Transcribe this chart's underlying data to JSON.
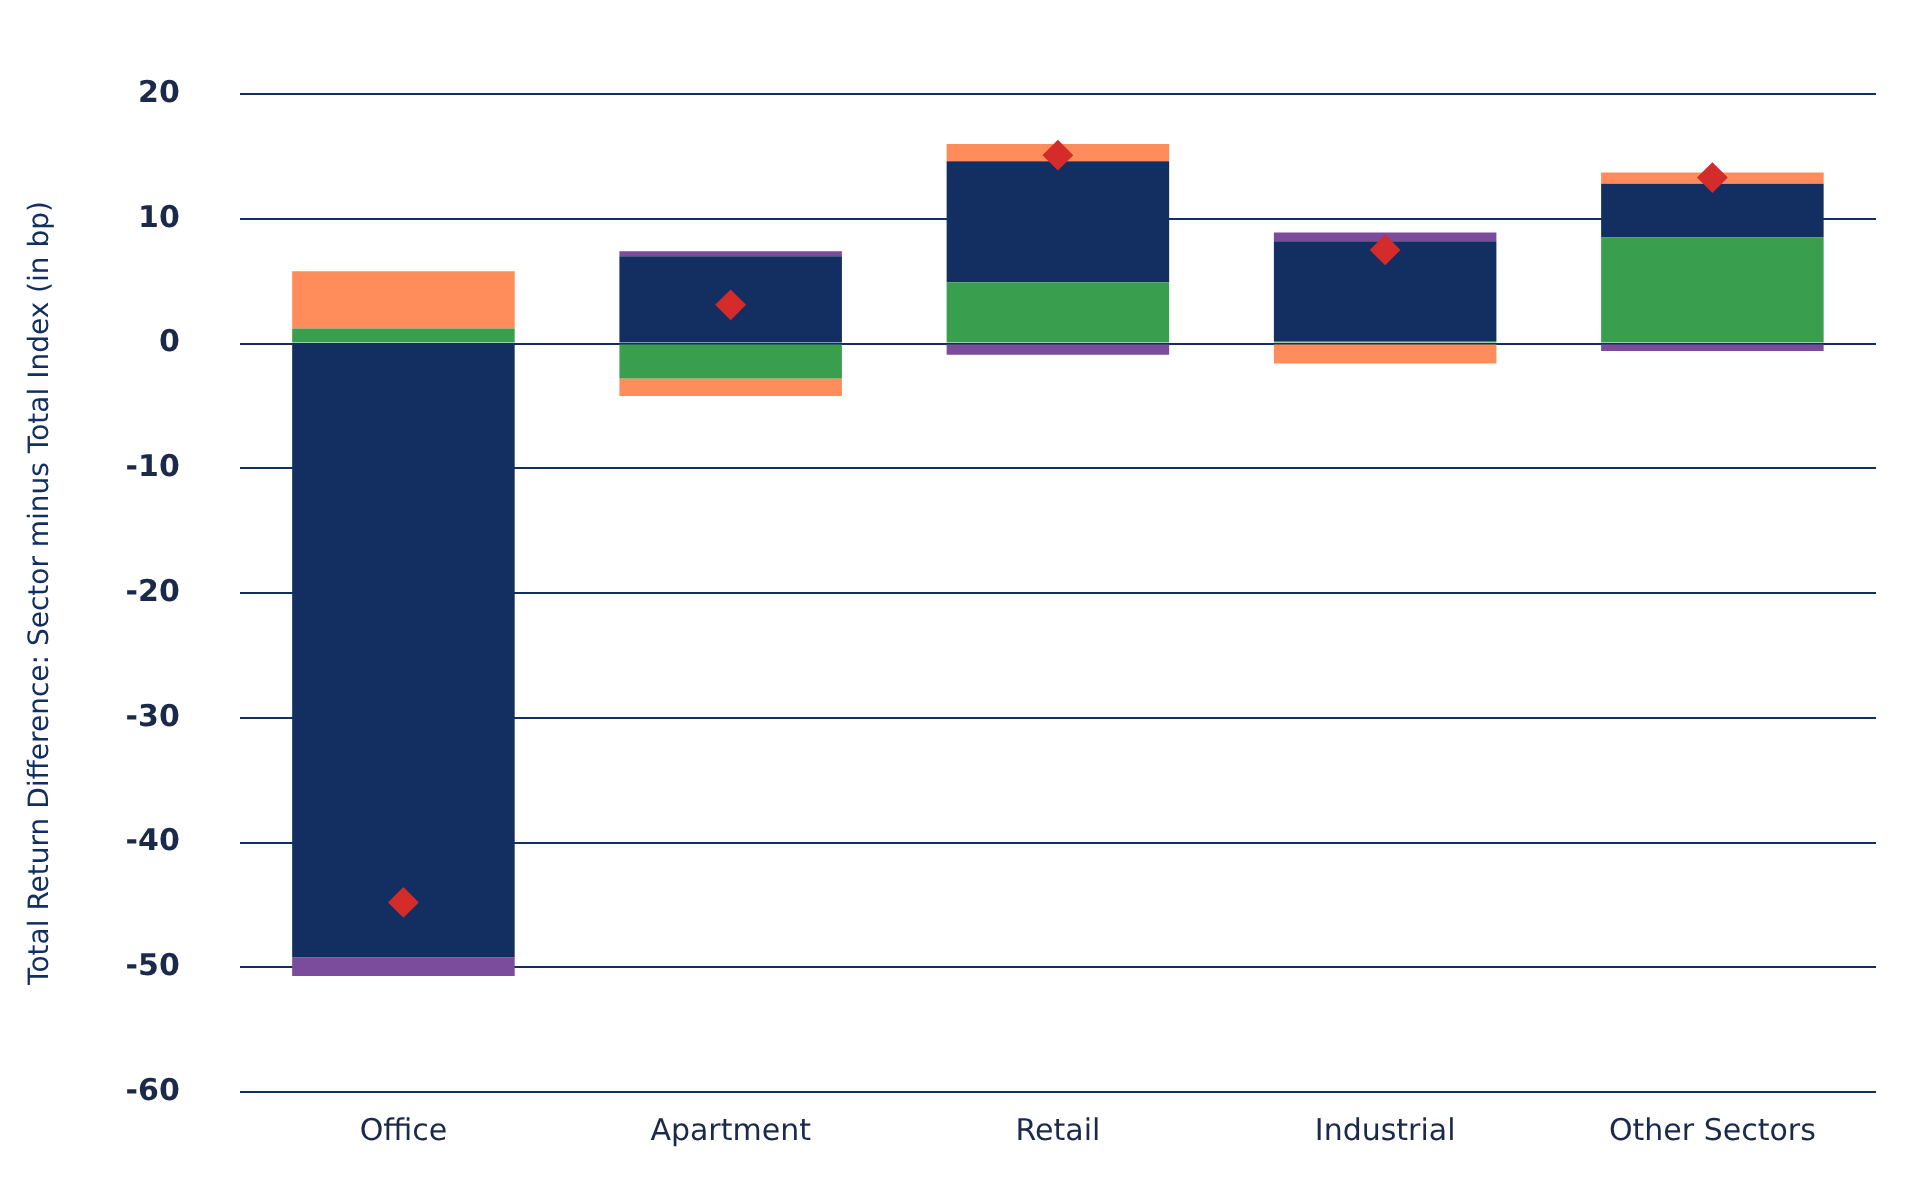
{
  "chart_data": {
    "type": "bar",
    "ylabel": "Total Return Difference: Sector minus Total Index (in bp)",
    "categories": [
      "Office",
      "Apartment",
      "Retail",
      "Industrial",
      "Other Sectors"
    ],
    "stacked": true,
    "ylim": [
      -60,
      20
    ],
    "yticks": [
      -60,
      -50,
      -40,
      -30,
      -20,
      -10,
      0,
      10,
      20
    ],
    "grid": "y",
    "legend": false,
    "series": [
      {
        "color": "#3a9e4f",
        "values": [
          1.2,
          -2.8,
          4.9,
          0.2,
          8.5
        ]
      },
      {
        "color": "#132f62",
        "values": [
          -49.2,
          7.0,
          9.7,
          8.0,
          4.3
        ]
      },
      {
        "color": "#ff8c5a",
        "values": [
          4.6,
          -1.4,
          1.4,
          -1.6,
          0.9
        ]
      },
      {
        "color": "#7b4c9c",
        "values": [
          -1.5,
          0.4,
          -0.9,
          0.7,
          -0.6
        ]
      },
      {
        "type": "scatter",
        "color": "#d42b2b",
        "marker": "diamond",
        "values": [
          -44.8,
          3.1,
          15.1,
          7.5,
          13.3
        ]
      }
    ]
  }
}
